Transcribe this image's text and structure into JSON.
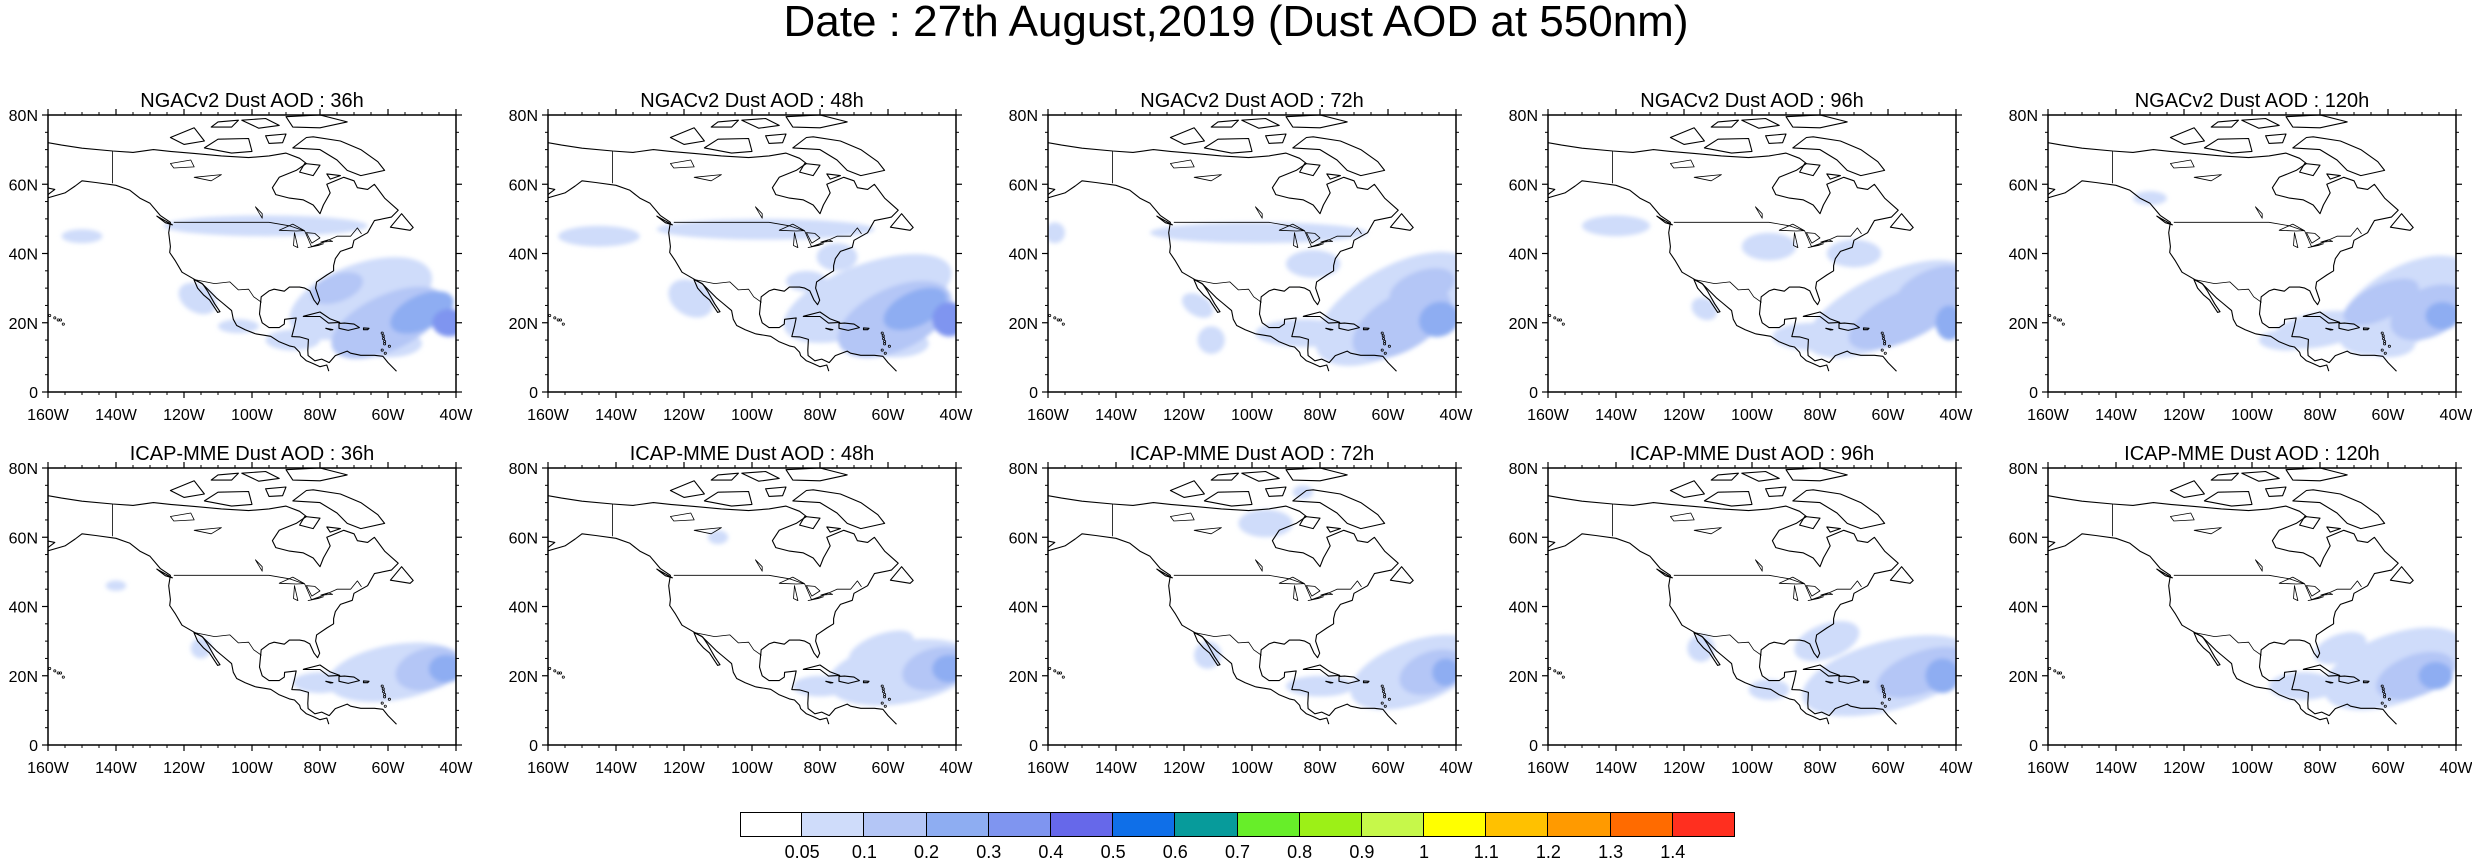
{
  "title": "Date : 27th August,2019 (Dust AOD at 550nm)",
  "lon_labels": [
    "160W",
    "140W",
    "120W",
    "100W",
    "80W",
    "60W",
    "40W"
  ],
  "lat_labels": [
    "0",
    "20N",
    "40N",
    "60N",
    "80N"
  ],
  "panels": [
    {
      "title": "NGACv2 Dust AOD : 36h"
    },
    {
      "title": "NGACv2 Dust AOD : 48h"
    },
    {
      "title": "NGACv2 Dust AOD : 72h"
    },
    {
      "title": "NGACv2 Dust AOD : 96h"
    },
    {
      "title": "NGACv2 Dust AOD : 120h"
    },
    {
      "title": "ICAP-MME Dust AOD : 36h"
    },
    {
      "title": "ICAP-MME Dust AOD : 48h"
    },
    {
      "title": "ICAP-MME Dust AOD : 72h"
    },
    {
      "title": "ICAP-MME Dust AOD : 96h"
    },
    {
      "title": "ICAP-MME Dust AOD : 120h"
    }
  ],
  "colorbar": {
    "colors": [
      "#ffffff",
      "#cfdcfa",
      "#b4c6f6",
      "#8eadf2",
      "#7f95f0",
      "#6668ea",
      "#0f6fe8",
      "#079b9b",
      "#67ee29",
      "#9cf017",
      "#c6f84a",
      "#ffff00",
      "#ffc100",
      "#ff9a00",
      "#ff6b00",
      "#ff2f1f"
    ],
    "labels": [
      "0.05",
      "0.1",
      "0.2",
      "0.3",
      "0.4",
      "0.5",
      "0.6",
      "0.7",
      "0.8",
      "0.9",
      "1",
      "1.1",
      "1.2",
      "1.3",
      "1.4"
    ]
  }
}
